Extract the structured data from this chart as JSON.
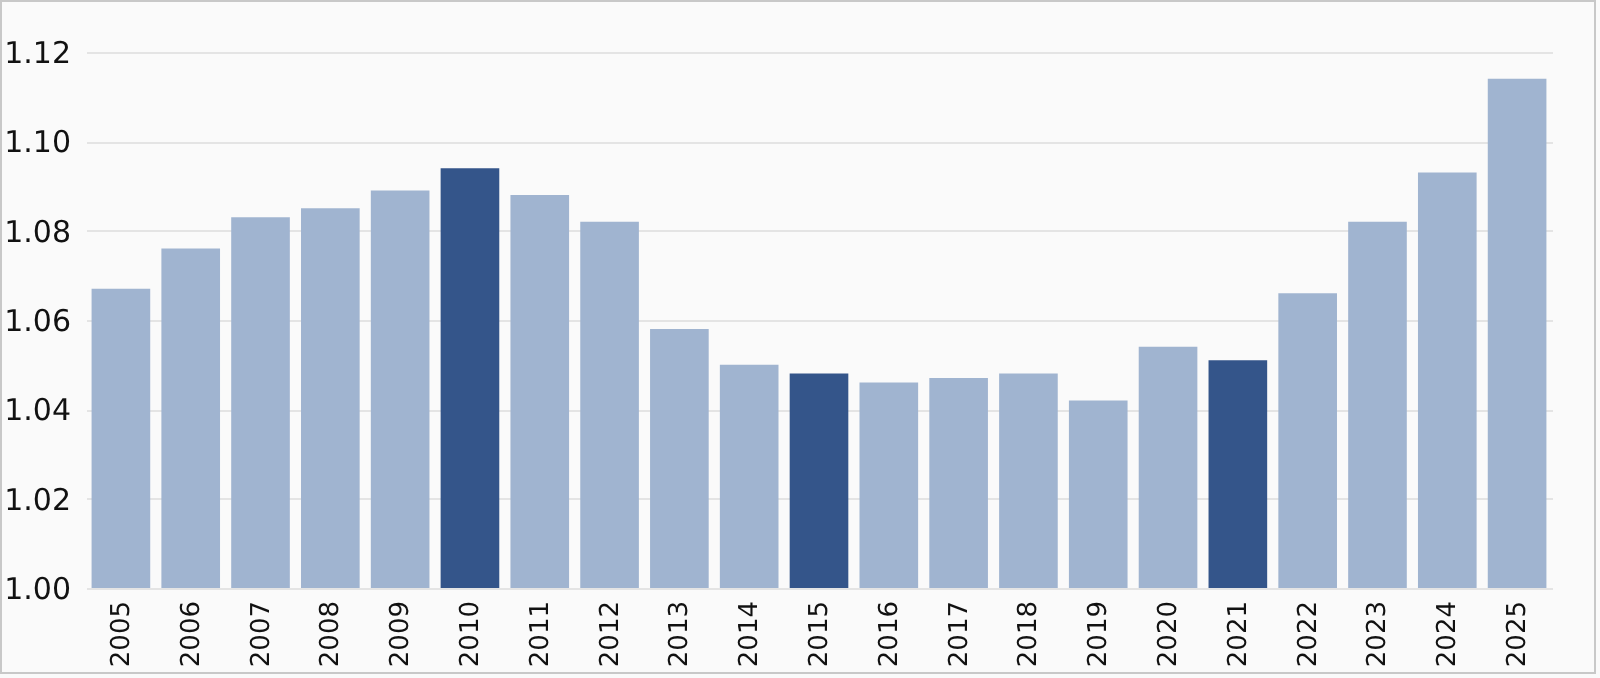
{
  "chart_data": {
    "type": "bar",
    "categories": [
      "2005",
      "2006",
      "2007",
      "2008",
      "2009",
      "2010",
      "2011",
      "2012",
      "2013",
      "2014",
      "2015",
      "2016",
      "2017",
      "2018",
      "2019",
      "2020",
      "2021",
      "2022",
      "2023",
      "2024",
      "2025"
    ],
    "values": [
      1.067,
      1.076,
      1.083,
      1.085,
      1.089,
      1.094,
      1.088,
      1.082,
      1.058,
      1.05,
      1.048,
      1.046,
      1.047,
      1.048,
      1.042,
      1.054,
      1.051,
      1.066,
      1.082,
      1.093,
      1.114
    ],
    "colors": [
      "#a0b4d0",
      "#a0b4d0",
      "#a0b4d0",
      "#a0b4d0",
      "#a0b4d0",
      "#34558a",
      "#a0b4d0",
      "#a0b4d0",
      "#a0b4d0",
      "#a0b4d0",
      "#34558a",
      "#a0b4d0",
      "#a0b4d0",
      "#a0b4d0",
      "#a0b4d0",
      "#a0b4d0",
      "#34558a",
      "#a0b4d0",
      "#a0b4d0",
      "#a0b4d0",
      "#a0b4d0"
    ],
    "ylim": [
      1.0,
      1.12
    ],
    "yticks": [
      {
        "value": 1.0,
        "label": "1.00"
      },
      {
        "value": 1.02,
        "label": "1.02"
      },
      {
        "value": 1.04,
        "label": "1.04"
      },
      {
        "value": 1.06,
        "label": "1.06"
      },
      {
        "value": 1.08,
        "label": "1.08"
      },
      {
        "value": 1.1,
        "label": "1.10"
      },
      {
        "value": 1.12,
        "label": "1.12"
      }
    ],
    "grid": "y"
  }
}
